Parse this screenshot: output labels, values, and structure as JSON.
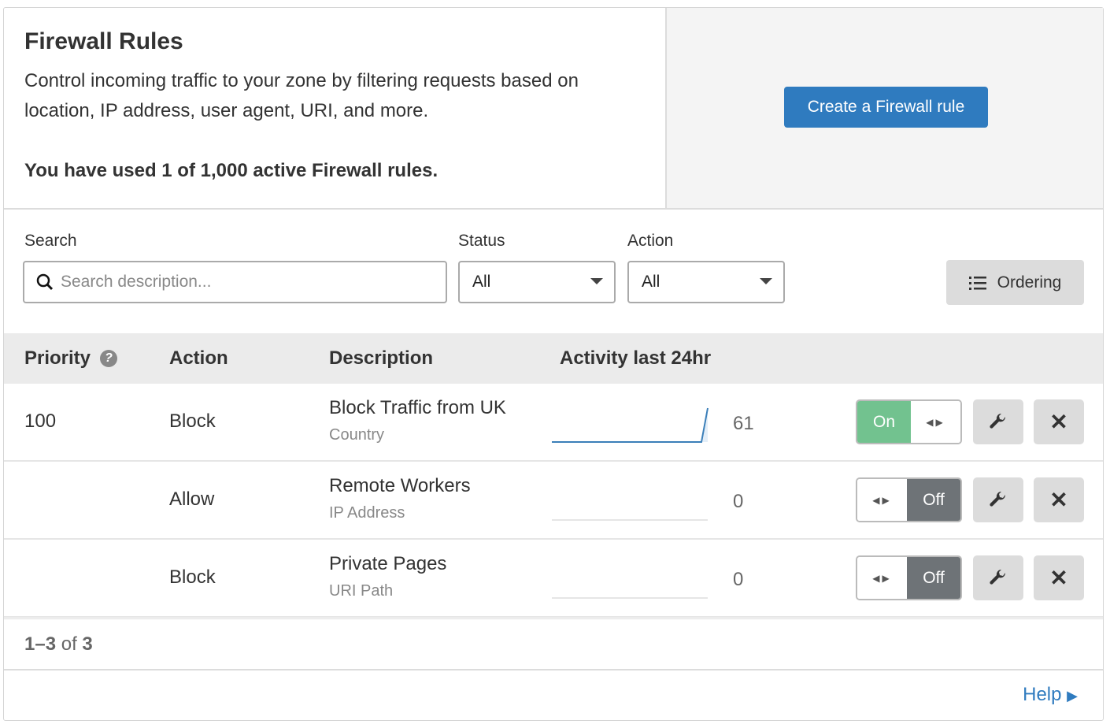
{
  "header": {
    "title": "Firewall Rules",
    "description": "Control incoming traffic to your zone by filtering requests based on location, IP address, user agent, URI, and more.",
    "usage": "You have used 1 of 1,000 active Firewall rules.",
    "create_label": "Create a Firewall rule"
  },
  "filters": {
    "search_label": "Search",
    "search_placeholder": "Search description...",
    "status_label": "Status",
    "status_value": "All",
    "action_label": "Action",
    "action_value": "All",
    "ordering_label": "Ordering"
  },
  "table": {
    "headers": {
      "priority": "Priority",
      "action": "Action",
      "description": "Description",
      "activity": "Activity last 24hr"
    },
    "rows": [
      {
        "priority": "100",
        "action": "Block",
        "name": "Block Traffic from UK",
        "type": "Country",
        "count": "61",
        "state": "On",
        "enabled": true
      },
      {
        "priority": "",
        "action": "Allow",
        "name": "Remote Workers",
        "type": "IP Address",
        "count": "0",
        "state": "Off",
        "enabled": false
      },
      {
        "priority": "",
        "action": "Block",
        "name": "Private Pages",
        "type": "URI Path",
        "count": "0",
        "state": "Off",
        "enabled": false
      }
    ]
  },
  "pagination": {
    "range": "1–3",
    "of": "of",
    "total": "3"
  },
  "help_label": "Help",
  "colors": {
    "primary": "#2f7bbf",
    "on": "#72c28f",
    "off": "#6e7377"
  }
}
